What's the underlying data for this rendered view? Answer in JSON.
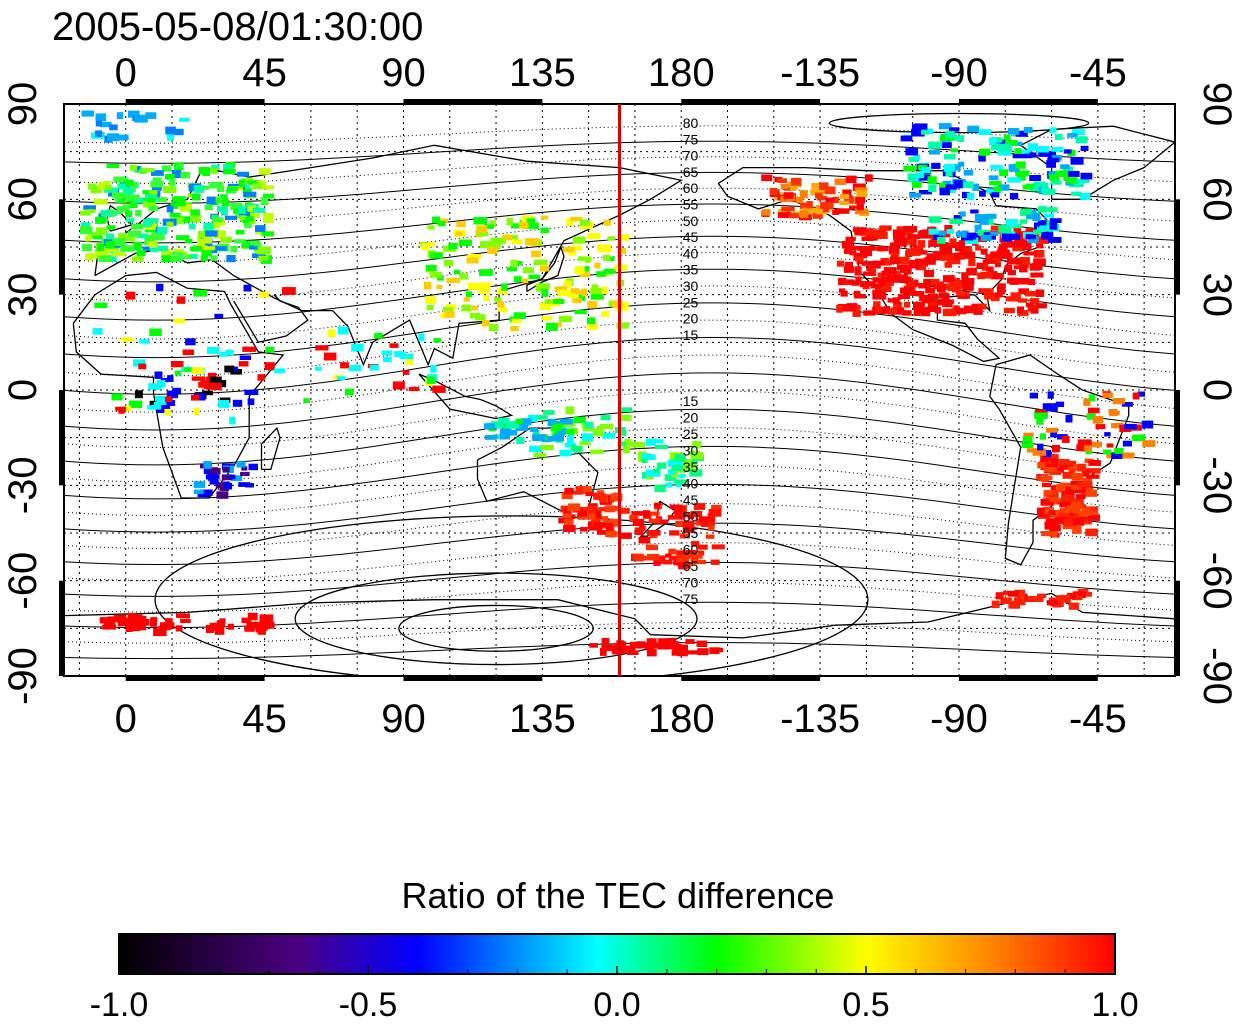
{
  "title": "2005-05-08/01:30:00",
  "lon_ticks": [
    "0",
    "45",
    "90",
    "135",
    "180",
    "-135",
    "-90",
    "-45"
  ],
  "lon_values": [
    0,
    45,
    90,
    135,
    180,
    225,
    270,
    315
  ],
  "lat_ticks": [
    "90",
    "60",
    "30",
    "0",
    "-30",
    "-60",
    "-90"
  ],
  "lat_values": [
    90,
    60,
    30,
    0,
    -30,
    -60,
    -90
  ],
  "map_extent": {
    "lon_min": -20,
    "lon_max": 340,
    "lat_min": -90,
    "lat_max": 90
  },
  "terminator_lon": 160,
  "terminator_color": "#dd0000",
  "contour_labels_north": [
    "80",
    "75",
    "70",
    "65",
    "60",
    "55",
    "50",
    "45",
    "40",
    "35",
    "30",
    "25",
    "20",
    "15"
  ],
  "contour_labels_south": [
    "15",
    "20",
    "25",
    "30",
    "35",
    "40",
    "45",
    "50",
    "55",
    "60",
    "65",
    "70",
    "75"
  ],
  "colorbar": {
    "title": "Ratio of the TEC difference",
    "tick_labels": [
      "-1.0",
      "-0.5",
      "0.0",
      "0.5",
      "1.0"
    ],
    "tick_values": [
      -1.0,
      -0.5,
      0.0,
      0.5,
      1.0
    ],
    "stops": [
      "#000000",
      "#4b0082",
      "#0000ff",
      "#00ffff",
      "#00ff00",
      "#ffff00",
      "#ff8000",
      "#ff0000"
    ]
  }
}
